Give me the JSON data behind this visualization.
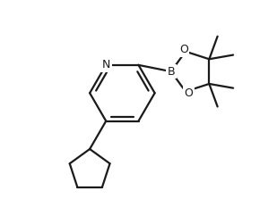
{
  "background_color": "#ffffff",
  "line_color": "#1a1a1a",
  "line_width": 1.6,
  "figsize": [
    3.09,
    2.23
  ],
  "dpi": 100,
  "xlim": [
    -2.5,
    3.5
  ],
  "ylim": [
    -3.2,
    2.8
  ]
}
